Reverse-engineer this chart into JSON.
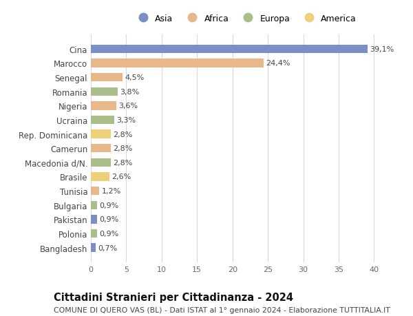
{
  "countries": [
    "Cina",
    "Marocco",
    "Senegal",
    "Romania",
    "Nigeria",
    "Ucraina",
    "Rep. Dominicana",
    "Camerun",
    "Macedonia d/N.",
    "Brasile",
    "Tunisia",
    "Bulgaria",
    "Pakistan",
    "Polonia",
    "Bangladesh"
  ],
  "values": [
    39.1,
    24.4,
    4.5,
    3.8,
    3.6,
    3.3,
    2.8,
    2.8,
    2.8,
    2.6,
    1.2,
    0.9,
    0.9,
    0.9,
    0.7
  ],
  "labels": [
    "39,1%",
    "24,4%",
    "4,5%",
    "3,8%",
    "3,6%",
    "3,3%",
    "2,8%",
    "2,8%",
    "2,8%",
    "2,6%",
    "1,2%",
    "0,9%",
    "0,9%",
    "0,9%",
    "0,7%"
  ],
  "continents": [
    "Asia",
    "Africa",
    "Africa",
    "Europa",
    "Africa",
    "Europa",
    "America",
    "Africa",
    "Europa",
    "America",
    "Africa",
    "Europa",
    "Asia",
    "Europa",
    "Asia"
  ],
  "colors": {
    "Asia": "#7B8EC8",
    "Africa": "#E8B88A",
    "Europa": "#AABE8A",
    "America": "#EDD078"
  },
  "title": "Cittadini Stranieri per Cittadinanza - 2024",
  "subtitle": "COMUNE DI QUERO VAS (BL) - Dati ISTAT al 1° gennaio 2024 - Elaborazione TUTTITALIA.IT",
  "xlim": [
    0,
    42
  ],
  "xticks": [
    0,
    5,
    10,
    15,
    20,
    25,
    30,
    35,
    40
  ],
  "bg_color": "#ffffff",
  "grid_color": "#d8d8d8",
  "bar_height": 0.6,
  "label_fontsize": 8,
  "title_fontsize": 10.5,
  "subtitle_fontsize": 7.8,
  "ytick_fontsize": 8.5,
  "xtick_fontsize": 8
}
